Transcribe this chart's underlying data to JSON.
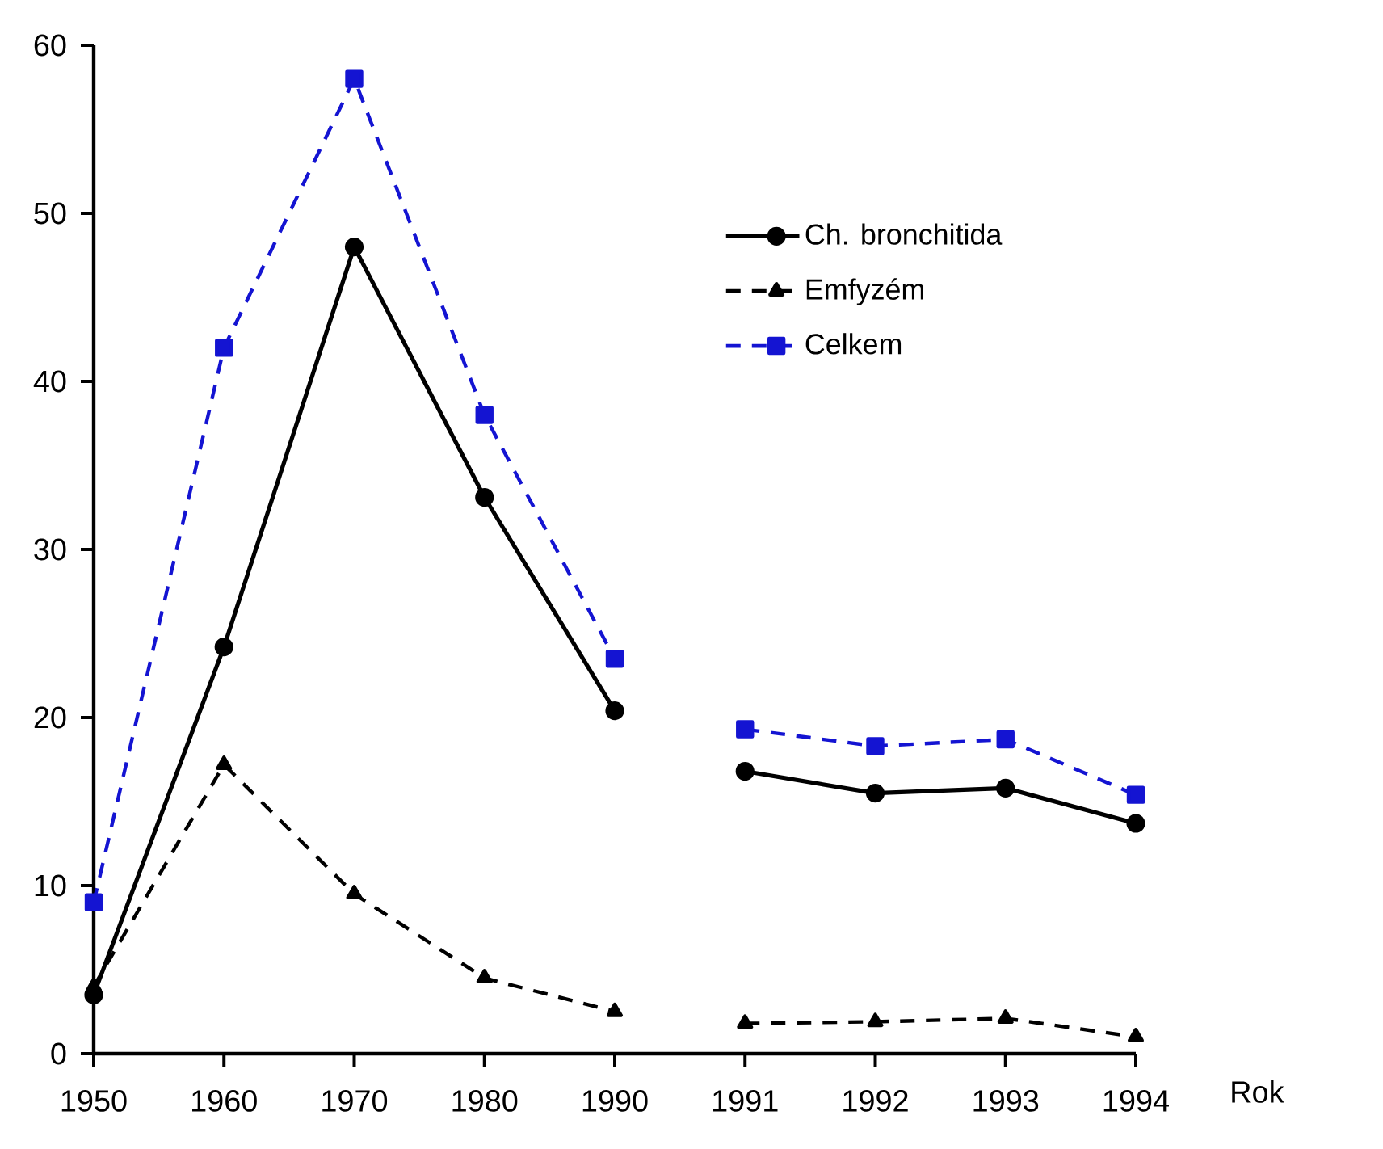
{
  "chart_data": {
    "type": "line",
    "xlabel": "Rok",
    "categories": [
      "1950",
      "1960",
      "1970",
      "1980",
      "1990",
      "1991",
      "1992",
      "1993",
      "1994"
    ],
    "ylim": [
      0,
      60
    ],
    "yticks": [
      0,
      10,
      20,
      30,
      40,
      50,
      60
    ],
    "grid": false,
    "legend": "top right",
    "series": [
      {
        "name": "Ch. bronchitida",
        "color": "#000000",
        "marker": "circle",
        "line_style": "solid",
        "values": [
          3.5,
          24.2,
          48,
          33.1,
          20.4,
          null,
          null,
          null,
          null
        ]
      },
      {
        "name": "Emfyzém",
        "color": "#000000",
        "marker": "triangle",
        "line_style": "dashed",
        "values": [
          4,
          17.2,
          9.5,
          4.5,
          2.5,
          null,
          null,
          null,
          null
        ]
      },
      {
        "name": "Celkem",
        "color": "#1414d2",
        "marker": "square",
        "line_style": "dashed",
        "values": [
          9,
          42,
          58,
          38,
          23.5,
          null,
          null,
          null,
          null
        ]
      },
      {
        "color": "#000000",
        "marker": "circle",
        "line_style": "solid",
        "values": [
          null,
          null,
          null,
          null,
          null,
          16.8,
          15.5,
          15.8,
          13.7
        ]
      },
      {
        "color": "#000000",
        "marker": "triangle",
        "line_style": "dashed",
        "values": [
          null,
          null,
          null,
          null,
          null,
          1.8,
          1.9,
          2.1,
          1.0
        ]
      },
      {
        "color": "#1414d2",
        "marker": "square",
        "line_style": "dashed",
        "values": [
          null,
          null,
          null,
          null,
          null,
          19.3,
          18.3,
          18.7,
          15.4
        ]
      }
    ]
  }
}
